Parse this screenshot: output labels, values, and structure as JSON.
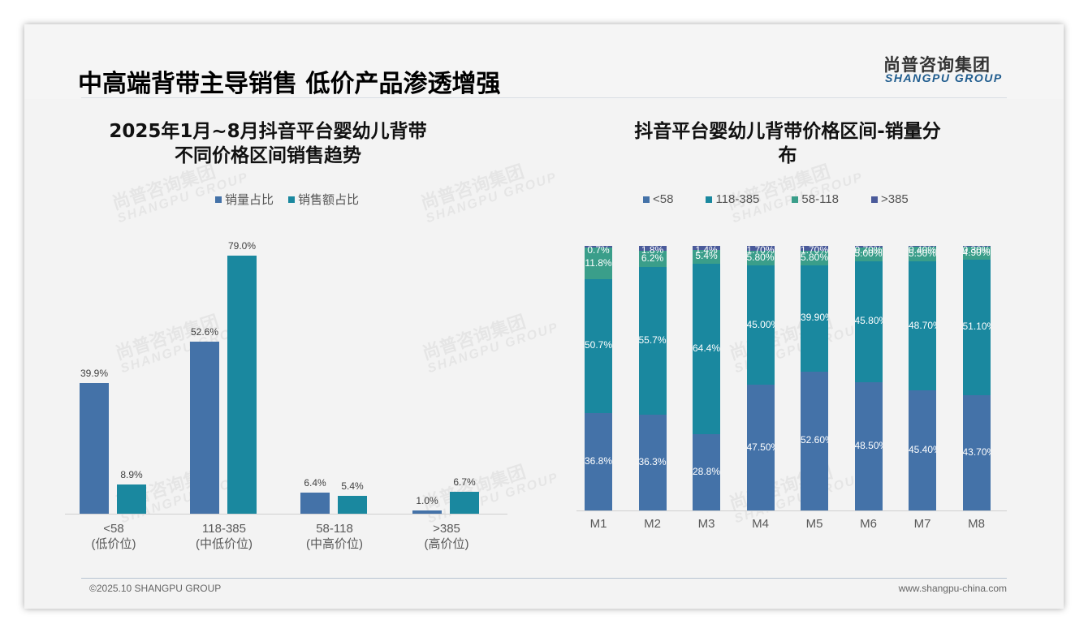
{
  "header": {
    "title": "中高端背带主导销售 低价产品渗透增强",
    "logo_cn": "尚普咨询集团",
    "logo_en": "SHANGPU GROUP"
  },
  "footer": {
    "copyright": "©2025.10 SHANGPU GROUP",
    "website": "www.shangpu-china.com"
  },
  "watermark": {
    "cn": "尚普咨询集团",
    "en": "SHANGPU GROUP"
  },
  "colors": {
    "blue": "#4472a8",
    "teal": "#1a889f",
    "green": "#3a9e8a",
    "purple": "#4a5a9a"
  },
  "left_chart": {
    "title_line1": "2025年1月~8月抖音平台婴幼儿背带",
    "title_line2": "不同价格区间销售趋势",
    "legend": [
      "销量占比",
      "销售额占比"
    ]
  },
  "right_chart": {
    "title_line1": "抖音平台婴幼儿背带价格区间-销量分",
    "title_line2": "布",
    "legend": [
      "<58",
      "118-385",
      "58-118",
      ">385"
    ]
  },
  "chart_data": [
    {
      "type": "bar",
      "title": "2025年1月~8月抖音平台婴幼儿背带不同价格区间销售趋势",
      "categories": [
        "<58",
        "118-385",
        "58-118",
        ">385"
      ],
      "category_sublabels": [
        "(低价位)",
        "(中低价位)",
        "(中高价位)",
        "(高价位)"
      ],
      "series": [
        {
          "name": "销量占比",
          "values": [
            39.9,
            52.6,
            6.4,
            1.0
          ],
          "labels": [
            "39.9%",
            "52.6%",
            "6.4%",
            "1.0%"
          ]
        },
        {
          "name": "销售额占比",
          "values": [
            8.9,
            79.0,
            5.4,
            6.7
          ],
          "labels": [
            "8.9%",
            "79.0%",
            "5.4%",
            "6.7%"
          ]
        }
      ],
      "ylim": [
        0,
        85
      ],
      "xlabel": "",
      "ylabel": "",
      "legend_position": "top",
      "grid": false
    },
    {
      "type": "bar",
      "stacked": true,
      "title": "抖音平台婴幼儿背带价格区间-销量分布",
      "categories": [
        "M1",
        "M2",
        "M3",
        "M4",
        "M5",
        "M6",
        "M7",
        "M8"
      ],
      "series": [
        {
          "name": "<58",
          "values": [
            36.8,
            36.3,
            28.8,
            47.5,
            52.6,
            48.5,
            45.4,
            43.7
          ],
          "labels": [
            "36.8%",
            "36.3%",
            "28.8%",
            "47.50%",
            "52.60%",
            "48.50%",
            "45.40%",
            "43.70%"
          ]
        },
        {
          "name": "118-385",
          "values": [
            50.7,
            55.7,
            64.4,
            45.0,
            39.9,
            45.8,
            48.7,
            51.1
          ],
          "labels": [
            "50.7%",
            "55.7%",
            "64.4%",
            "45.00%",
            "39.90%",
            "45.80%",
            "48.70%",
            "51.10%"
          ]
        },
        {
          "name": "58-118",
          "values": [
            11.8,
            6.2,
            5.4,
            5.8,
            5.8,
            5.0,
            5.5,
            4.9
          ],
          "labels": [
            "11.8%",
            "6.2%",
            "5.4%",
            "5.80%",
            "5.80%",
            "5.00%",
            "5.50%",
            "4.90%"
          ]
        },
        {
          "name": ">385",
          "values": [
            0.7,
            1.8,
            1.4,
            1.7,
            1.7,
            0.7,
            0.4,
            0.3
          ],
          "labels": [
            "0.7%",
            "1.8%",
            "1.4%",
            "1.70%",
            "1.70%",
            "0.70%",
            "0.40%",
            "0.30%"
          ]
        }
      ],
      "ylim": [
        0,
        100
      ],
      "xlabel": "",
      "ylabel": "",
      "legend_position": "top",
      "grid": false
    }
  ]
}
